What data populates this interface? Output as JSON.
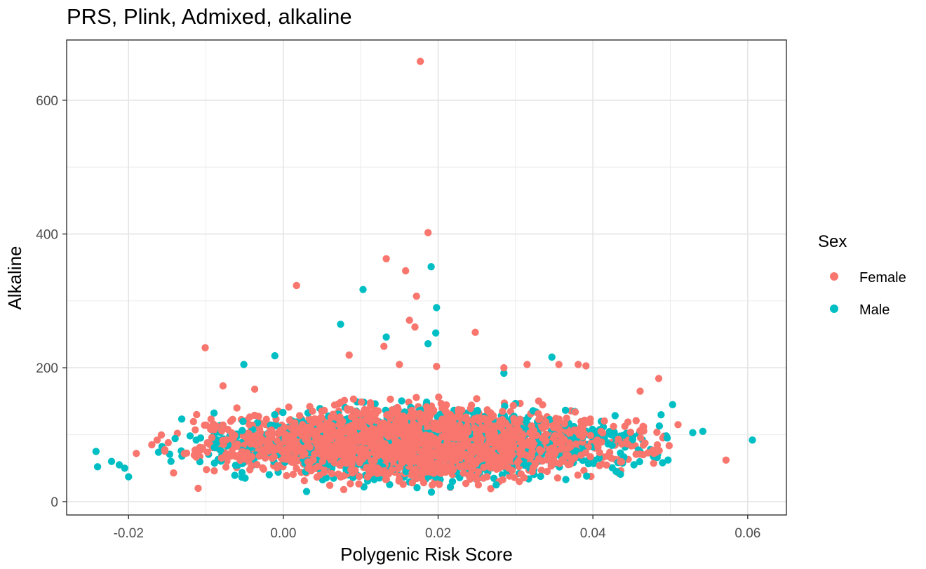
{
  "chart_data": {
    "type": "scatter",
    "title": "PRS, Plink, Admixed, alkaline",
    "xlabel": "Polygenic Risk Score",
    "ylabel": "Alkaline",
    "xlim": [
      -0.028,
      0.065
    ],
    "ylim": [
      -20,
      690
    ],
    "x_ticks": [
      -0.02,
      0.0,
      0.02,
      0.04,
      0.06
    ],
    "x_tick_labels": [
      "-0.02",
      "0.00",
      "0.02",
      "0.04",
      "0.06"
    ],
    "y_ticks": [
      0,
      200,
      400,
      600
    ],
    "y_tick_labels": [
      "0",
      "200",
      "400",
      "600"
    ],
    "grid": true,
    "legend": {
      "title": "Sex",
      "position": "right",
      "entries": [
        {
          "label": "Female",
          "color": "#F8766D"
        },
        {
          "label": "Male",
          "color": "#00BFC4"
        }
      ]
    },
    "series": [
      {
        "name": "Female",
        "color": "#F8766D",
        "points": [
          [
            0.0177,
            658
          ],
          [
            0.0187,
            402
          ],
          [
            0.0133,
            363
          ],
          [
            0.0158,
            345
          ],
          [
            0.0017,
            323
          ],
          [
            0.0172,
            307
          ],
          [
            0.0163,
            271
          ],
          [
            0.017,
            261
          ],
          [
            0.0248,
            253
          ],
          [
            0.013,
            232
          ],
          [
            -0.0101,
            230
          ],
          [
            0.0085,
            219
          ],
          [
            0.015,
            205
          ],
          [
            0.0198,
            202
          ],
          [
            0.0315,
            205
          ],
          [
            0.0356,
            205
          ],
          [
            0.0381,
            205
          ],
          [
            0.0391,
            203
          ],
          [
            0.0285,
            200
          ],
          [
            0.0485,
            184
          ],
          [
            -0.0078,
            173
          ],
          [
            -0.0037,
            168
          ],
          [
            0.0461,
            165
          ],
          [
            -0.006,
            140
          ],
          [
            -0.0112,
            130
          ],
          [
            0.0572,
            62
          ],
          [
            -0.011,
            20
          ],
          [
            -0.019,
            72
          ],
          [
            -0.017,
            85
          ],
          [
            0.051,
            115
          ],
          [
            0.0465,
            70
          ],
          [
            0.0078,
            18
          ],
          [
            0.0252,
            25
          ],
          [
            0.0305,
            30
          ]
        ],
        "cloud": {
          "x_min": -0.015,
          "x_max": 0.046,
          "center_x": 0.017,
          "center_y": 88,
          "spread_y": 22,
          "count": 2400
        }
      },
      {
        "name": "Male",
        "color": "#00BFC4",
        "points": [
          [
            0.0191,
            351
          ],
          [
            0.0103,
            317
          ],
          [
            0.0198,
            290
          ],
          [
            0.0074,
            265
          ],
          [
            0.0197,
            252
          ],
          [
            0.0133,
            246
          ],
          [
            0.0187,
            236
          ],
          [
            0.0347,
            216
          ],
          [
            -0.0011,
            218
          ],
          [
            -0.0051,
            205
          ],
          [
            0.0285,
            192
          ],
          [
            0.0606,
            92
          ],
          [
            0.0542,
            105
          ],
          [
            0.0529,
            103
          ],
          [
            0.0503,
            145
          ],
          [
            0.0496,
            95
          ],
          [
            -0.0242,
            75
          ],
          [
            -0.024,
            52
          ],
          [
            -0.0222,
            60
          ],
          [
            -0.0212,
            55
          ],
          [
            -0.0205,
            50
          ],
          [
            -0.02,
            37
          ],
          [
            0.003,
            15
          ],
          [
            0.043,
            45
          ],
          [
            0.0275,
            25
          ],
          [
            0.0365,
            33
          ],
          [
            0.049,
            58
          ],
          [
            0.0453,
            55
          ]
        ],
        "cloud": {
          "x_min": -0.016,
          "x_max": 0.046,
          "center_x": 0.018,
          "center_y": 86,
          "spread_y": 22,
          "count": 1500
        }
      }
    ]
  }
}
